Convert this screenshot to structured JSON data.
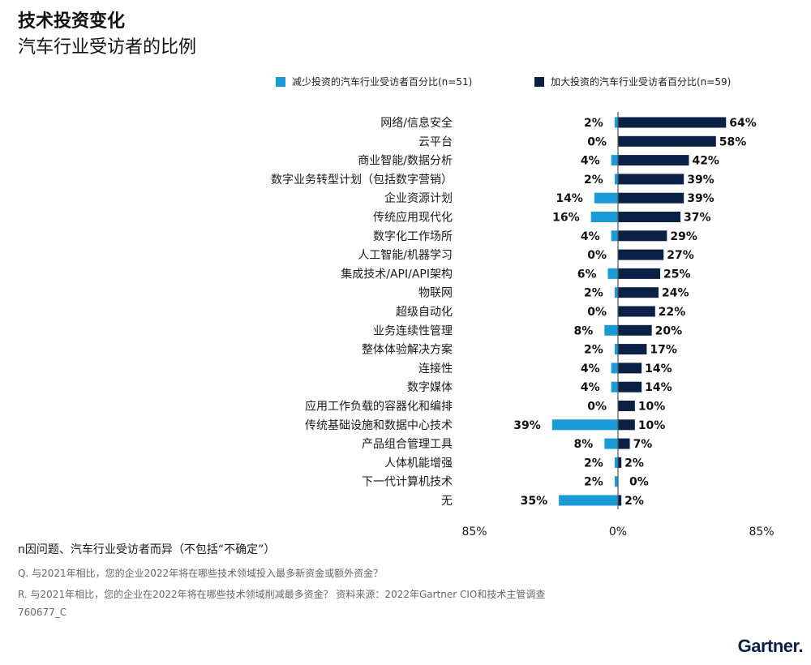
{
  "header": {
    "title": "技术投资变化",
    "subtitle": "汽车行业受访者的比例"
  },
  "legend": {
    "decrease_label": "减少投资的汽车行业受访者百分比(n=51)",
    "increase_label": "加大投资的汽车行业受访者百分比(n=59)"
  },
  "colors": {
    "decrease": "#1a9ad6",
    "increase": "#0b2045",
    "axis": "#555555"
  },
  "chart_data": {
    "type": "bar",
    "orientation": "horizontal-diverging",
    "categories": [
      "网络/信息安全",
      "云平台",
      "商业智能/数据分析",
      "数字业务转型计划（包括数字营销）",
      "企业资源计划",
      "传统应用现代化",
      "数字化工作场所",
      "人工智能/机器学习",
      "集成技术/API/API架构",
      "物联网",
      "超级自动化",
      "业务连续性管理",
      "整体体验解决方案",
      "连接性",
      "数字媒体",
      "应用工作负载的容器化和编排",
      "传统基础设施和数据中心技术",
      "产品组合管理工具",
      "人体机能增强",
      "下一代计算机技术",
      "无"
    ],
    "series": [
      {
        "name": "减少投资的汽车行业受访者百分比(n=51)",
        "values": [
          2,
          0,
          4,
          2,
          14,
          16,
          4,
          0,
          6,
          2,
          0,
          8,
          2,
          4,
          4,
          0,
          39,
          8,
          2,
          2,
          35
        ]
      },
      {
        "name": "加大投资的汽车行业受访者百分比(n=59)",
        "values": [
          64,
          58,
          42,
          39,
          39,
          37,
          29,
          27,
          25,
          24,
          22,
          20,
          17,
          14,
          14,
          10,
          10,
          7,
          2,
          0,
          2
        ]
      }
    ],
    "xlim": [
      -85,
      85
    ],
    "x_ticks": [
      "85%",
      "0%",
      "85%"
    ],
    "value_suffix": "%"
  },
  "notes": {
    "n_note": "n因问题、汽车行业受访者而异（不包括“不确定”）",
    "q": "Q. 与2021年相比，您的企业2022年将在哪些技术领域投入最多新资金或额外资金？",
    "r": "R. 与2021年相比，您的企业在2022年将在哪些技术领域削减最多资金？ 资料来源：2022年Gartner CIO和技术主管调查",
    "id": "760677_C"
  },
  "brand": {
    "logo": "Gartner."
  }
}
